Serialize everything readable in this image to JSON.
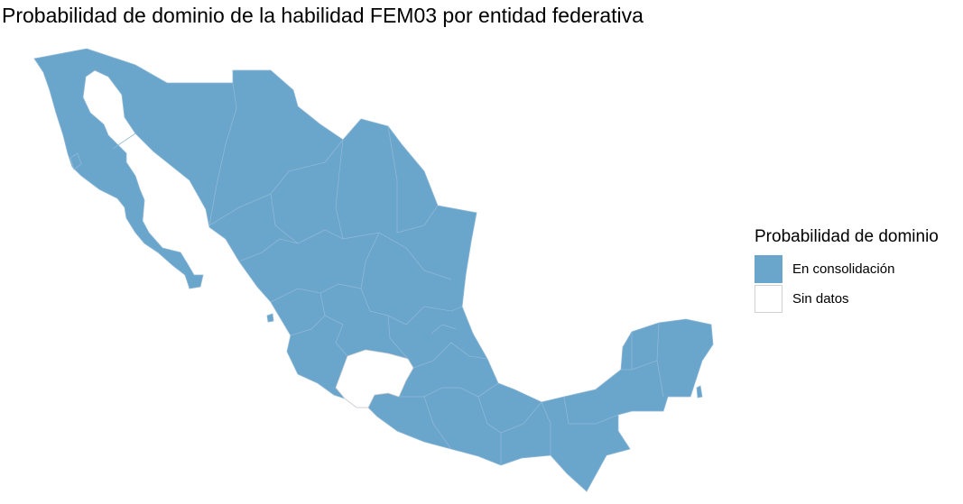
{
  "title": "Probabilidad de dominio de la habilidad FEM03 por entidad federativa",
  "map": {
    "country": "México",
    "fill_consolidacion": "#6aa5cc",
    "fill_sin_datos": "#ffffff",
    "border_color": "#8fb8d6",
    "states_sin_datos": [
      "Michoacán"
    ]
  },
  "legend": {
    "title": "Probabilidad de dominio",
    "items": [
      {
        "label": "En consolidación",
        "color": "#6aa5cc"
      },
      {
        "label": "Sin datos",
        "color": "#ffffff"
      }
    ]
  }
}
